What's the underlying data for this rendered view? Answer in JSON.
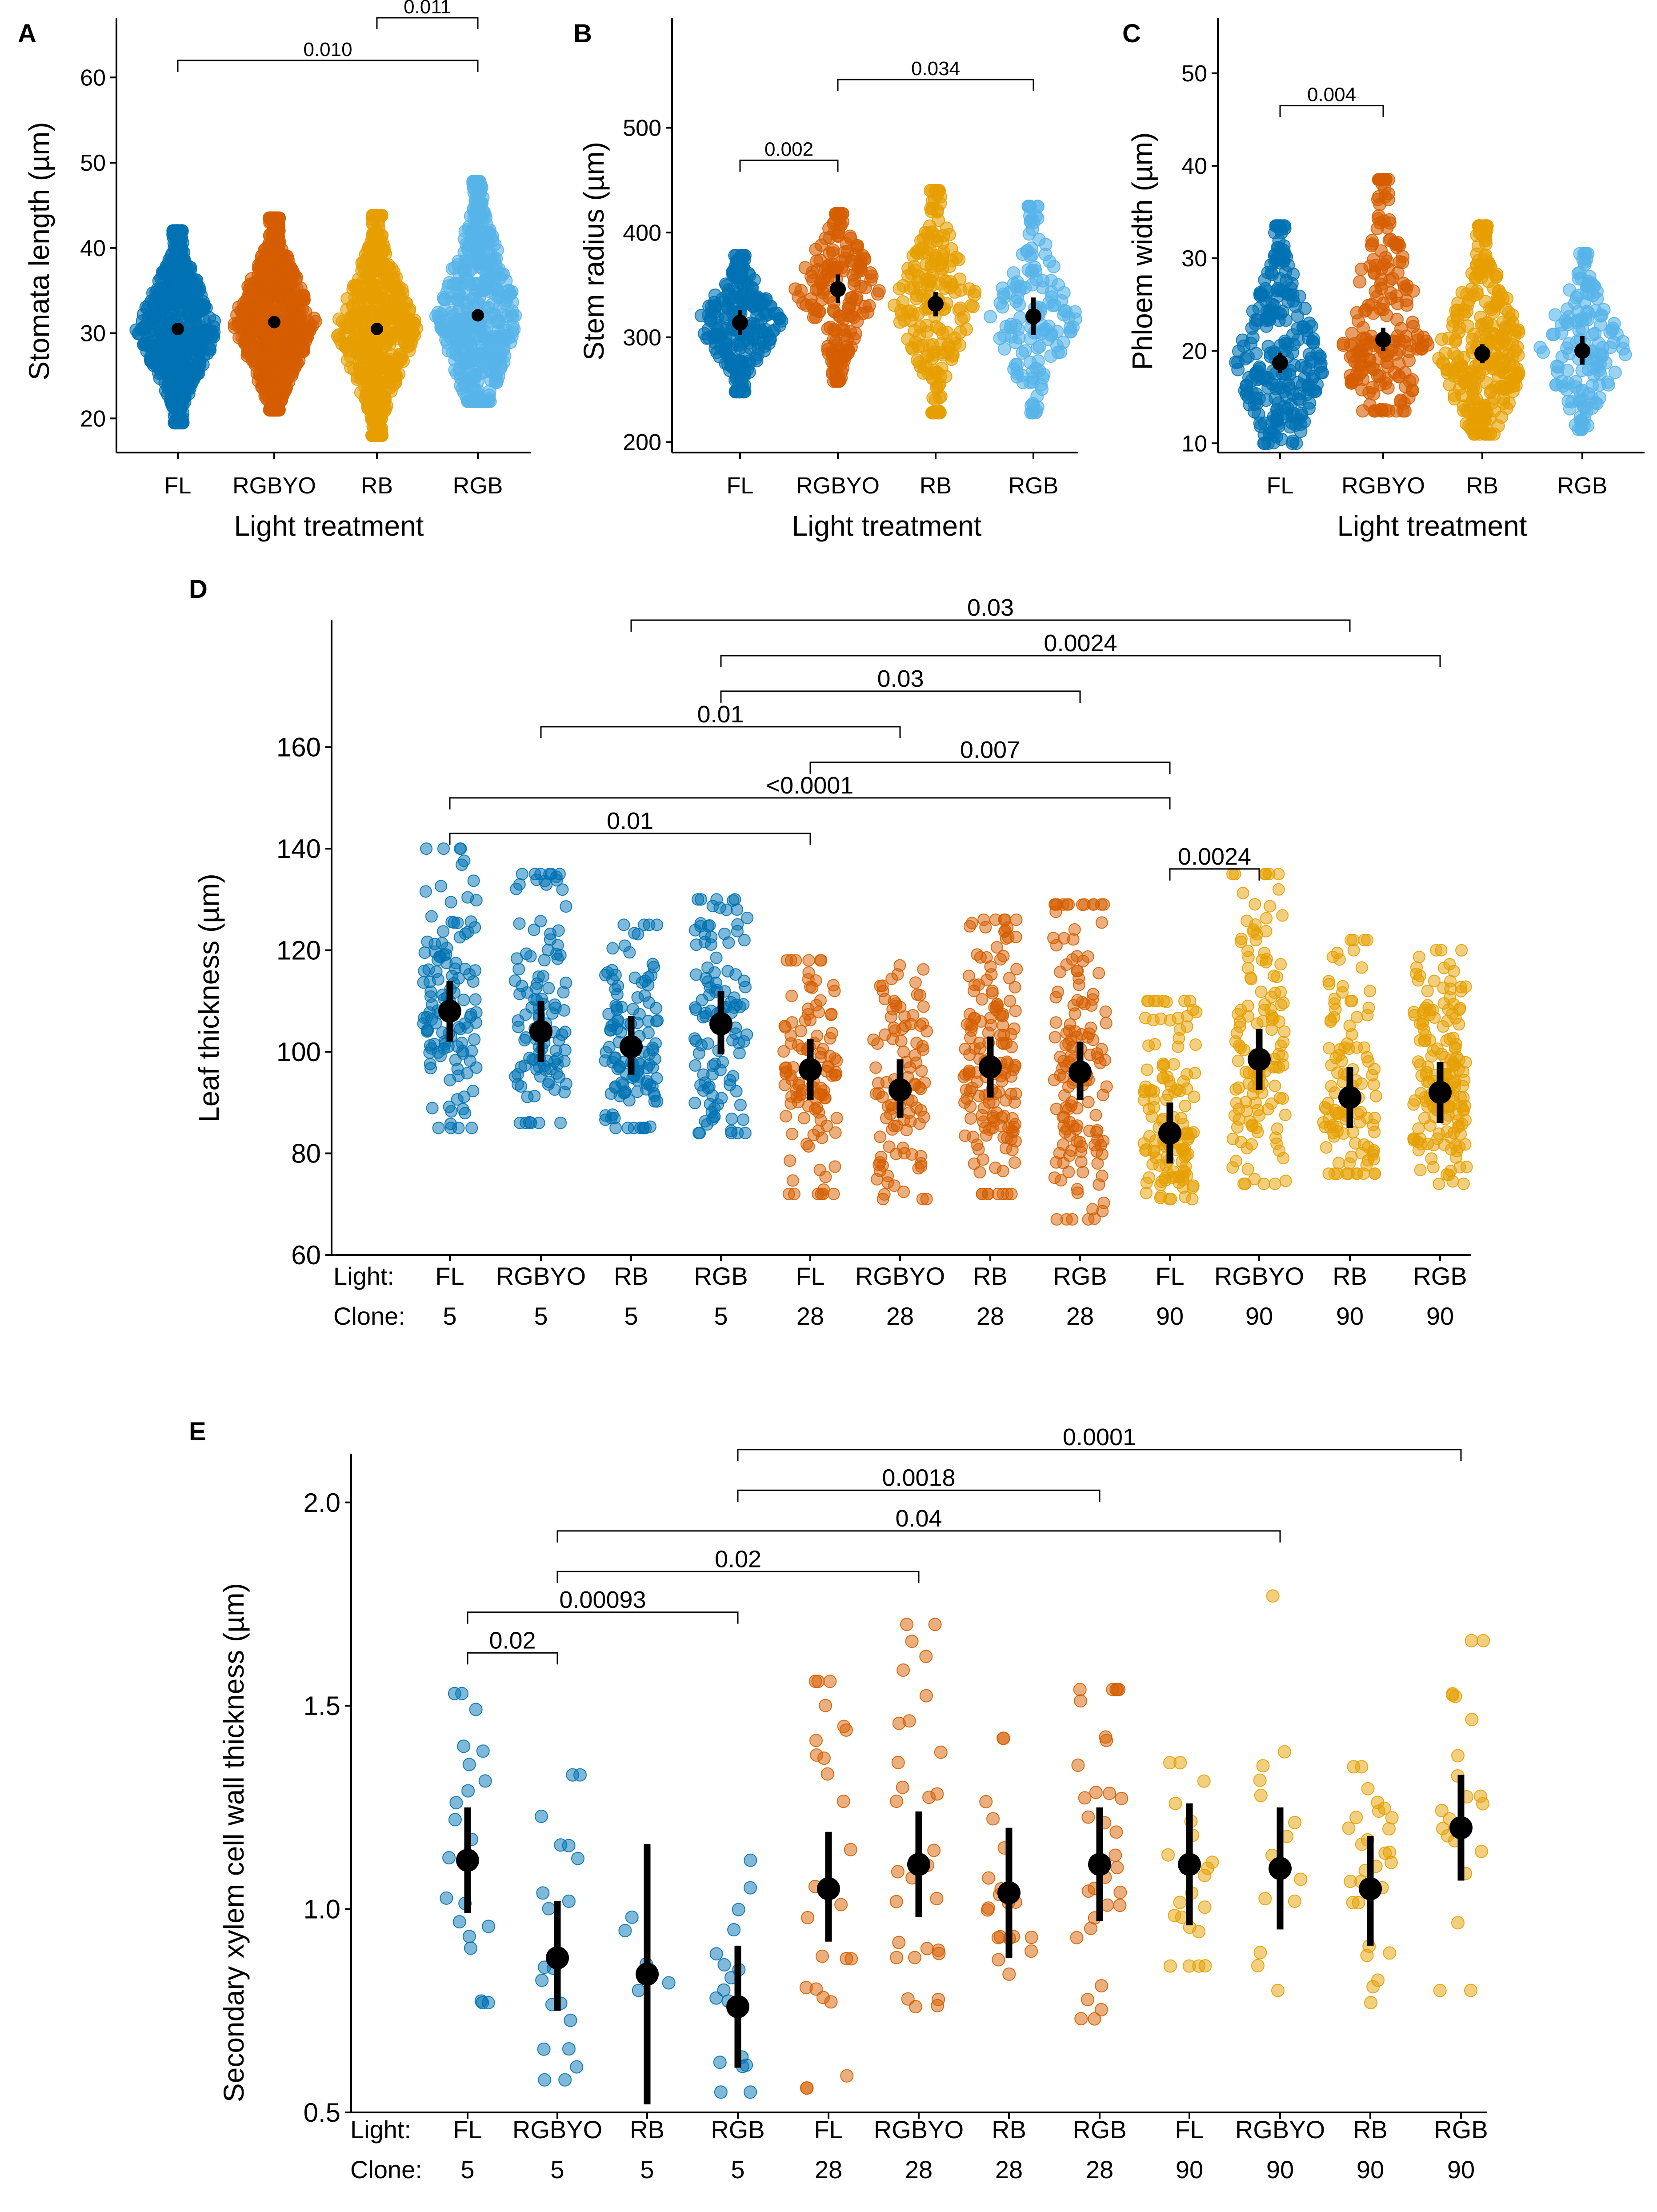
{
  "chart_data": [
    {
      "id": "A",
      "type": "scatter",
      "panel_label": "A",
      "ylabel": "Stomata length (µm)",
      "xlabel": "Light treatment",
      "ylim": [
        16,
        67
      ],
      "yticks": [
        20,
        30,
        40,
        50,
        60
      ],
      "categories": [
        "FL",
        "RGBYO",
        "RB",
        "RGB"
      ],
      "colors": [
        "#0072B2",
        "#D55E00",
        "#E69F00",
        "#56B4E9"
      ],
      "means": [
        30.5,
        31.3,
        30.5,
        32.1
      ],
      "ci": [
        [
          30.1,
          30.9
        ],
        [
          30.9,
          31.7
        ],
        [
          30.1,
          30.9
        ],
        [
          31.6,
          32.7
        ]
      ],
      "ranges": [
        [
          19.5,
          42.0
        ],
        [
          21.0,
          43.5
        ],
        [
          18.0,
          43.8
        ],
        [
          22.0,
          47.8
        ]
      ],
      "n_points": [
        620,
        700,
        560,
        460
      ],
      "brackets": [
        {
          "from": 0,
          "to": 3,
          "y": 62.0,
          "label": "0.010"
        },
        {
          "from": 2,
          "to": 3,
          "y": 67.0,
          "label": "0.011"
        }
      ]
    },
    {
      "id": "B",
      "type": "scatter",
      "panel_label": "B",
      "ylabel": "Stem radius (µm)",
      "xlabel": "Light treatment",
      "ylim": [
        190,
        605
      ],
      "yticks": [
        200,
        300,
        400,
        500
      ],
      "categories": [
        "FL",
        "RGBYO",
        "RB",
        "RGB"
      ],
      "colors": [
        "#0072B2",
        "#D55E00",
        "#E69F00",
        "#56B4E9"
      ],
      "means": [
        314,
        346,
        332,
        320
      ],
      "ci": [
        [
          302,
          326
        ],
        [
          333,
          360
        ],
        [
          320,
          343
        ],
        [
          302,
          338
        ]
      ],
      "ranges": [
        [
          248,
          378
        ],
        [
          258,
          418
        ],
        [
          228,
          440
        ],
        [
          228,
          425
        ]
      ],
      "n_points": [
        240,
        180,
        200,
        140
      ],
      "brackets": [
        {
          "from": 0,
          "to": 1,
          "y": 469,
          "label": "0.002"
        },
        {
          "from": 1,
          "to": 3,
          "y": 546,
          "label": "0.034"
        }
      ]
    },
    {
      "id": "C",
      "type": "scatter",
      "panel_label": "C",
      "ylabel": "Phloem width (µm)",
      "xlabel": "Light treatment",
      "ylim": [
        9,
        56
      ],
      "yticks": [
        10,
        20,
        30,
        40,
        50
      ],
      "categories": [
        "FL",
        "RGBYO",
        "RB",
        "RGB"
      ],
      "colors": [
        "#0072B2",
        "#D55E00",
        "#E69F00",
        "#56B4E9"
      ],
      "means": [
        18.7,
        21.2,
        19.7,
        20.0
      ],
      "ci": [
        [
          17.6,
          19.8
        ],
        [
          20.0,
          22.5
        ],
        [
          18.7,
          20.7
        ],
        [
          18.5,
          21.6
        ]
      ],
      "ranges": [
        [
          10.0,
          33.5
        ],
        [
          13.5,
          38.5
        ],
        [
          11.0,
          33.5
        ],
        [
          11.5,
          30.5
        ]
      ],
      "n_points": [
        260,
        200,
        280,
        150
      ],
      "brackets": [
        {
          "from": 0,
          "to": 1,
          "y": 46.5,
          "label": "0.004"
        }
      ]
    },
    {
      "id": "D",
      "type": "scatter",
      "panel_label": "D",
      "ylabel": "Leaf thickness (µm)",
      "ylim": [
        60,
        185
      ],
      "yticks": [
        60,
        80,
        100,
        120,
        140,
        160
      ],
      "row_labels": {
        "light": "Light:",
        "clone": "Clone:"
      },
      "categories": [
        "FL",
        "RGBYO",
        "RB",
        "RGB",
        "FL",
        "RGBYO",
        "RB",
        "RGB",
        "FL",
        "RGBYO",
        "RB",
        "RGB"
      ],
      "clones": [
        "5",
        "5",
        "5",
        "5",
        "28",
        "28",
        "28",
        "28",
        "90",
        "90",
        "90",
        "90"
      ],
      "colors": [
        "#0072B2",
        "#0072B2",
        "#0072B2",
        "#0072B2",
        "#D55E00",
        "#D55E00",
        "#D55E00",
        "#D55E00",
        "#E69F00",
        "#E69F00",
        "#E69F00",
        "#E69F00"
      ],
      "means": [
        108,
        104,
        101,
        105.5,
        96.5,
        92.5,
        97,
        96,
        84,
        98.5,
        91,
        92
      ],
      "ci": [
        [
          102,
          114
        ],
        [
          98,
          110
        ],
        [
          95.5,
          107
        ],
        [
          99.5,
          112
        ],
        [
          90.5,
          102.5
        ],
        [
          87,
          98.5
        ],
        [
          91,
          103
        ],
        [
          90.5,
          102
        ],
        [
          78,
          90
        ],
        [
          92.5,
          104.5
        ],
        [
          85,
          97
        ],
        [
          86,
          98
        ]
      ],
      "ranges": [
        [
          85,
          140
        ],
        [
          86,
          135
        ],
        [
          85,
          125
        ],
        [
          84,
          130
        ],
        [
          72,
          118
        ],
        [
          71,
          117
        ],
        [
          72,
          126
        ],
        [
          67,
          129
        ],
        [
          71,
          110
        ],
        [
          74,
          135
        ],
        [
          76,
          122
        ],
        [
          74,
          120
        ]
      ],
      "n_points": [
        120,
        110,
        120,
        110,
        110,
        100,
        160,
        140,
        130,
        130,
        110,
        170
      ],
      "brackets": [
        {
          "from": 0,
          "to": 4,
          "y": 143,
          "label": "0.01"
        },
        {
          "from": 0,
          "to": 8,
          "y": 150,
          "label": "<0.0001"
        },
        {
          "from": 4,
          "to": 8,
          "y": 157,
          "label": "0.007"
        },
        {
          "from": 1,
          "to": 5,
          "y": 164,
          "label": "0.01"
        },
        {
          "from": 3,
          "to": 7,
          "y": 171,
          "label": "0.03"
        },
        {
          "from": 3,
          "to": 11,
          "y": 178,
          "label": "0.0024"
        },
        {
          "from": 2,
          "to": 10,
          "y": 185,
          "label": "0.03"
        },
        {
          "from": 8,
          "to": 9,
          "y": 136,
          "label": "0.0024"
        }
      ]
    },
    {
      "id": "E",
      "type": "scatter",
      "panel_label": "E",
      "ylabel": "Secondary xylem cell wall thickness (µm)",
      "ylim": [
        0.5,
        2.12
      ],
      "yticks": [
        0.5,
        1.0,
        1.5,
        2.0
      ],
      "row_labels": {
        "light": "Light:",
        "clone": "Clone:"
      },
      "categories": [
        "FL",
        "RGBYO",
        "RB",
        "RGB",
        "FL",
        "RGBYO",
        "RB",
        "RGB",
        "FL",
        "RGBYO",
        "RB",
        "RGB"
      ],
      "clones": [
        "5",
        "5",
        "5",
        "5",
        "28",
        "28",
        "28",
        "28",
        "90",
        "90",
        "90",
        "90"
      ],
      "colors": [
        "#0072B2",
        "#0072B2",
        "#0072B2",
        "#0072B2",
        "#D55E00",
        "#D55E00",
        "#D55E00",
        "#D55E00",
        "#E69F00",
        "#E69F00",
        "#E69F00",
        "#E69F00"
      ],
      "means": [
        1.12,
        0.88,
        0.84,
        0.76,
        1.05,
        1.11,
        1.04,
        1.11,
        1.11,
        1.1,
        1.05,
        1.2
      ],
      "ci": [
        [
          0.99,
          1.25
        ],
        [
          0.75,
          1.02
        ],
        [
          0.52,
          1.16
        ],
        [
          0.61,
          0.91
        ],
        [
          0.92,
          1.19
        ],
        [
          0.98,
          1.24
        ],
        [
          0.88,
          1.2
        ],
        [
          0.97,
          1.25
        ],
        [
          0.96,
          1.26
        ],
        [
          0.95,
          1.25
        ],
        [
          0.91,
          1.18
        ],
        [
          1.07,
          1.33
        ]
      ],
      "ranges": [
        [
          0.77,
          1.53
        ],
        [
          0.58,
          1.33
        ],
        [
          0.8,
          0.98
        ],
        [
          0.55,
          1.12
        ],
        [
          0.56,
          1.56
        ],
        [
          0.76,
          1.7
        ],
        [
          0.84,
          1.42
        ],
        [
          0.73,
          1.54
        ],
        [
          0.86,
          1.36
        ],
        [
          0.8,
          1.77
        ],
        [
          0.77,
          1.35
        ],
        [
          0.8,
          1.66
        ]
      ],
      "n_points": [
        22,
        20,
        5,
        17,
        25,
        30,
        20,
        32,
        22,
        14,
        28,
        22
      ],
      "brackets": [
        {
          "from": 0,
          "to": 1,
          "y": 1.63,
          "label": "0.02"
        },
        {
          "from": 0,
          "to": 3,
          "y": 1.73,
          "label": "0.00093"
        },
        {
          "from": 1,
          "to": 5,
          "y": 1.83,
          "label": "0.02"
        },
        {
          "from": 1,
          "to": 9,
          "y": 1.93,
          "label": "0.04"
        },
        {
          "from": 3,
          "to": 7,
          "y": 2.03,
          "label": "0.0018"
        },
        {
          "from": 3,
          "to": 11,
          "y": 2.13,
          "label": "0.0001"
        }
      ]
    }
  ]
}
